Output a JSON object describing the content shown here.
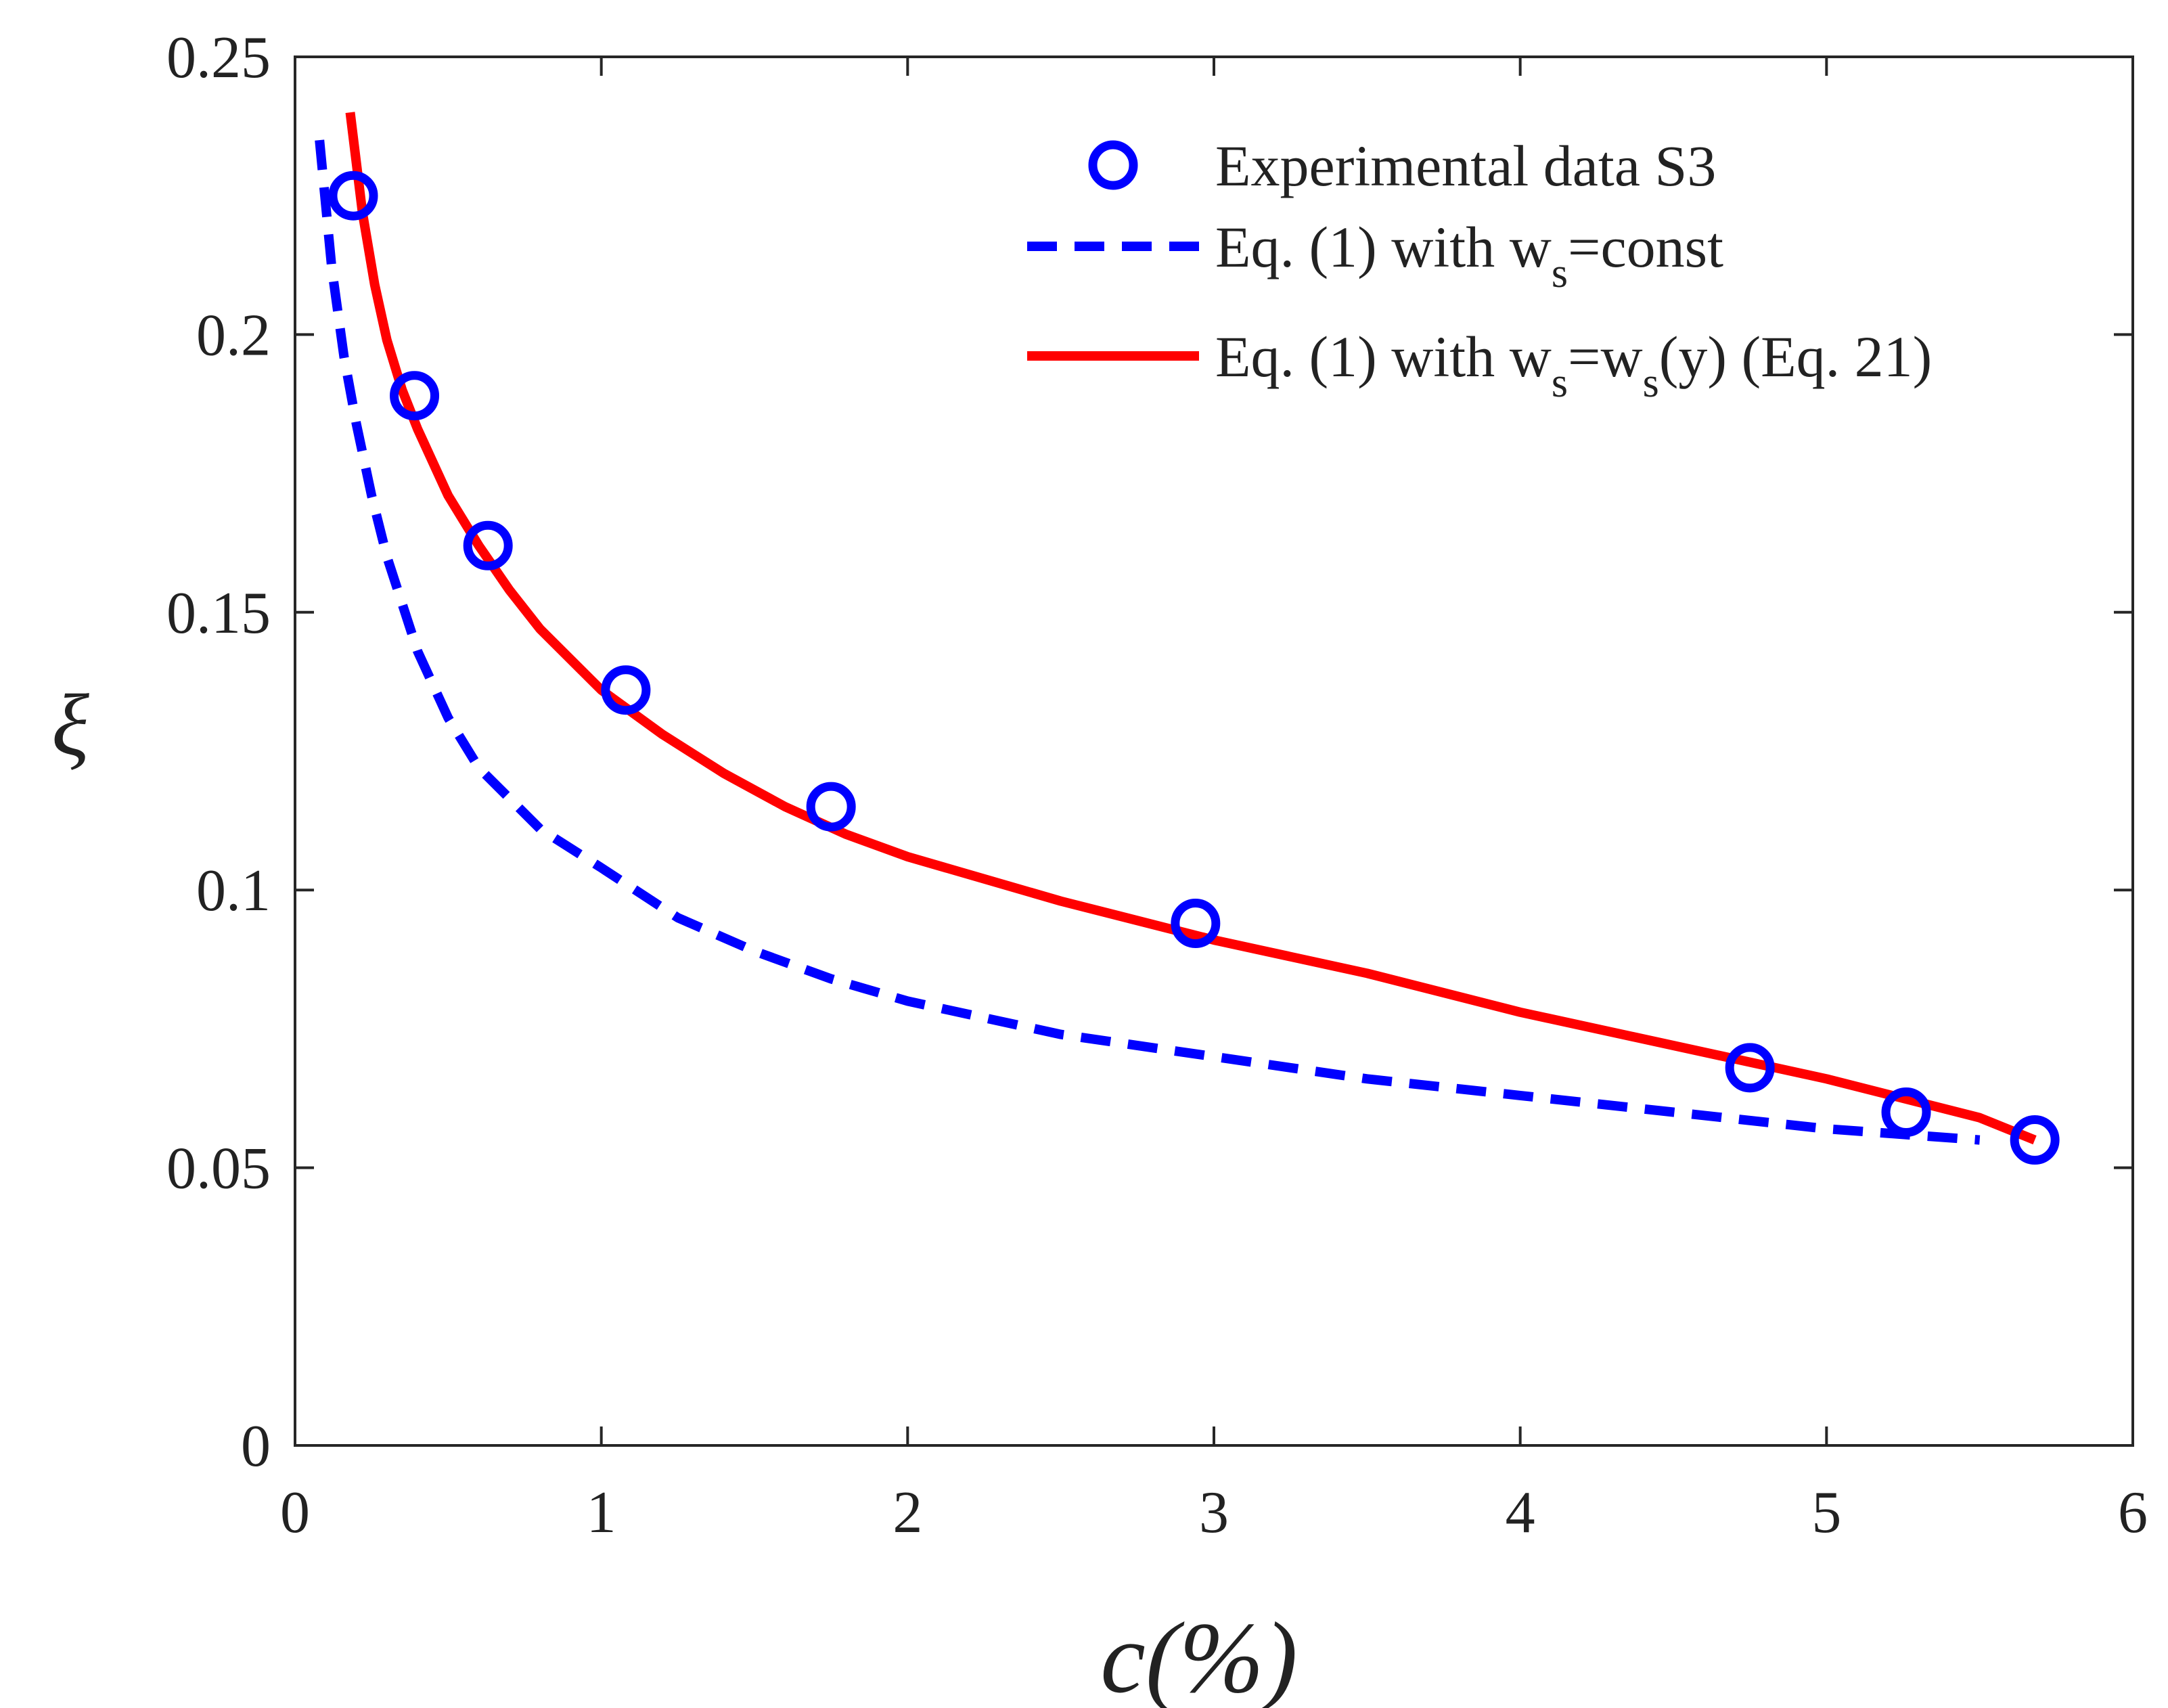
{
  "chart_data": {
    "type": "line",
    "title": "",
    "xlabel": "c(%)",
    "ylabel": "ξ",
    "xlim": [
      0,
      6
    ],
    "ylim": [
      0,
      0.25
    ],
    "xticks": [
      0,
      1,
      2,
      3,
      4,
      5,
      6
    ],
    "xtick_labels": [
      "0",
      "1",
      "2",
      "3",
      "4",
      "5",
      "6"
    ],
    "yticks": [
      0,
      0.05,
      0.1,
      0.15,
      0.2,
      0.25
    ],
    "ytick_labels": [
      "0",
      "0.05",
      "0.1",
      "0.15",
      "0.2",
      "0.25"
    ],
    "grid": false,
    "legend_position": "top-right",
    "series": [
      {
        "name": "Experimental data S3",
        "legend_label": "Experimental data S3",
        "kind": "scatter",
        "marker": "circle",
        "color": "#0000ff",
        "x": [
          0.19,
          0.39,
          0.63,
          1.08,
          1.75,
          2.94,
          4.75,
          5.26,
          5.68
        ],
        "y": [
          0.225,
          0.189,
          0.162,
          0.136,
          0.115,
          0.094,
          0.068,
          0.06,
          0.055
        ]
      },
      {
        "name": "Eq. (1) with ws=const",
        "legend_prefix": "Eq. (1) with w",
        "legend_parts": [
          {
            "text": "Eq. (1) with w",
            "sub": false
          },
          {
            "text": "s",
            "sub": true
          },
          {
            "text": "=const",
            "sub": false
          }
        ],
        "kind": "line",
        "dash": "dashed",
        "color": "#0000ff",
        "x": [
          0.08,
          0.12,
          0.16,
          0.2,
          0.25,
          0.3,
          0.4,
          0.5,
          0.6,
          0.8,
          1.0,
          1.25,
          1.5,
          1.75,
          2.0,
          2.5,
          3.0,
          3.5,
          4.0,
          4.5,
          5.0,
          5.5
        ],
        "y": [
          0.235,
          0.212,
          0.196,
          0.184,
          0.171,
          0.16,
          0.143,
          0.131,
          0.122,
          0.111,
          0.104,
          0.095,
          0.089,
          0.084,
          0.08,
          0.074,
          0.07,
          0.066,
          0.063,
          0.06,
          0.057,
          0.055
        ]
      },
      {
        "name": "Eq. (1) with ws=ws(y) (Eq. 21)",
        "legend_parts": [
          {
            "text": "Eq. (1) with w",
            "sub": false
          },
          {
            "text": "s",
            "sub": true
          },
          {
            "text": "=w",
            "sub": false
          },
          {
            "text": "s",
            "sub": true
          },
          {
            "text": "(y) (Eq. 21)",
            "sub": false
          }
        ],
        "kind": "line",
        "dash": "solid",
        "color": "#ff0000",
        "x": [
          0.18,
          0.22,
          0.26,
          0.3,
          0.35,
          0.4,
          0.5,
          0.6,
          0.7,
          0.8,
          1.0,
          1.2,
          1.4,
          1.6,
          1.8,
          2.0,
          2.5,
          3.0,
          3.5,
          4.0,
          4.5,
          5.0,
          5.5,
          5.68
        ],
        "y": [
          0.24,
          0.222,
          0.209,
          0.199,
          0.19,
          0.183,
          0.171,
          0.162,
          0.154,
          0.147,
          0.136,
          0.128,
          0.121,
          0.115,
          0.11,
          0.106,
          0.098,
          0.091,
          0.085,
          0.078,
          0.072,
          0.066,
          0.059,
          0.055
        ]
      }
    ]
  }
}
